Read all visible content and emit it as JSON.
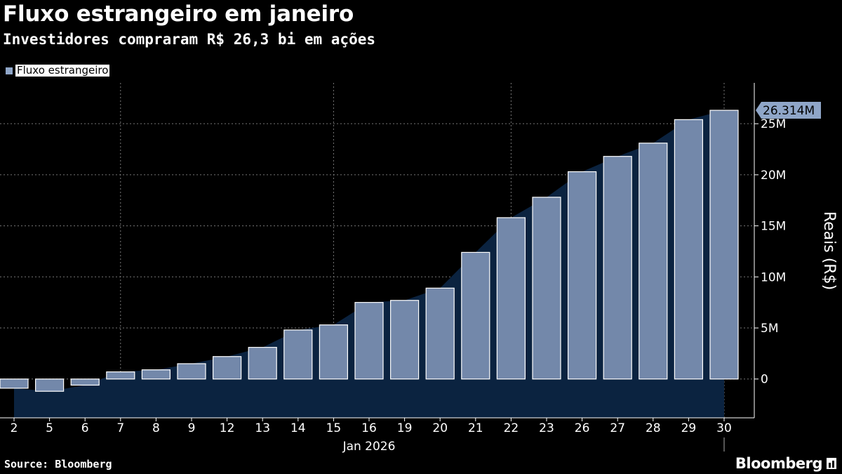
{
  "header": {
    "title": "Fluxo estrangeiro em janeiro",
    "subtitle": "Investidores compraram R$ 26,3 bi em ações"
  },
  "legend": {
    "label": "Fluxo estrangeiro",
    "color": "#8fa6c8"
  },
  "footer": {
    "source": "Source: Bloomberg",
    "brand": "Bloomberg"
  },
  "chart_data": {
    "type": "bar",
    "title": "Fluxo estrangeiro em janeiro",
    "subtitle": "Investidores compraram R$ 26,3 bi em ações",
    "xlabel": "Jan 2026",
    "ylabel": "Reais (R$)",
    "categories": [
      "2",
      "5",
      "6",
      "7",
      "8",
      "9",
      "12",
      "13",
      "14",
      "15",
      "16",
      "19",
      "20",
      "21",
      "22",
      "23",
      "26",
      "27",
      "28",
      "29",
      "30"
    ],
    "series": [
      {
        "name": "Fluxo estrangeiro",
        "color": "#7388aa",
        "values": [
          -0.9,
          -1.2,
          -0.6,
          0.7,
          0.9,
          1.5,
          2.2,
          3.1,
          4.8,
          5.3,
          7.5,
          7.7,
          8.9,
          12.4,
          15.8,
          17.8,
          20.3,
          21.8,
          23.1,
          25.4,
          26.314
        ]
      }
    ],
    "area_color": "#0b2340",
    "ylim": [
      -3.8,
      29
    ],
    "yticks": [
      0,
      5,
      10,
      15,
      20,
      25
    ],
    "ytick_labels": [
      "0",
      "5M",
      "10M",
      "15M",
      "20M",
      "25M"
    ],
    "x_gridlines_at": [
      "7",
      "15",
      "22",
      "30"
    ],
    "last_value_label": "26.314M"
  }
}
